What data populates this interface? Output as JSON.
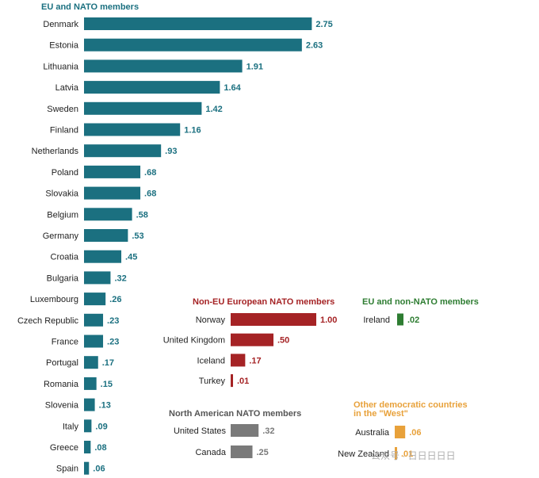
{
  "chart_data": [
    {
      "type": "bar",
      "orientation": "horizontal",
      "title": "EU and NATO members",
      "color": "#1b7080",
      "categories": [
        "Denmark",
        "Estonia",
        "Lithuania",
        "Latvia",
        "Sweden",
        "Finland",
        "Netherlands",
        "Poland",
        "Slovakia",
        "Belgium",
        "Germany",
        "Croatia",
        "Bulgaria",
        "Luxembourg",
        "Czech Republic",
        "France",
        "Portugal",
        "Romania",
        "Slovenia",
        "Italy",
        "Greece",
        "Spain"
      ],
      "values": [
        2.75,
        2.63,
        1.91,
        1.64,
        1.42,
        1.16,
        0.93,
        0.68,
        0.68,
        0.58,
        0.53,
        0.45,
        0.32,
        0.26,
        0.23,
        0.23,
        0.17,
        0.15,
        0.13,
        0.09,
        0.08,
        0.06
      ],
      "value_labels": [
        "2.75",
        "2.63",
        "1.91",
        "1.64",
        "1.42",
        "1.16",
        ".93",
        ".68",
        ".68",
        ".58",
        ".53",
        ".45",
        ".32",
        ".26",
        ".23",
        ".23",
        ".17",
        ".15",
        ".13",
        ".09",
        ".08",
        ".06"
      ]
    },
    {
      "type": "bar",
      "orientation": "horizontal",
      "title": "Non-EU European NATO members",
      "color": "#a52325",
      "categories": [
        "Norway",
        "United Kingdom",
        "Iceland",
        "Turkey"
      ],
      "values": [
        1.0,
        0.5,
        0.17,
        0.01
      ],
      "value_labels": [
        "1.00",
        ".50",
        ".17",
        ".01"
      ]
    },
    {
      "type": "bar",
      "orientation": "horizontal",
      "title": "EU and non-NATO members",
      "color": "#2e7d32",
      "categories": [
        "Ireland"
      ],
      "values": [
        0.02
      ],
      "value_labels": [
        ".02"
      ]
    },
    {
      "type": "bar",
      "orientation": "horizontal",
      "title": "North American NATO members",
      "color": "#7a7a7a",
      "categories": [
        "United States",
        "Canada"
      ],
      "values": [
        0.32,
        0.25
      ],
      "value_labels": [
        ".32",
        ".25"
      ]
    },
    {
      "type": "bar",
      "orientation": "horizontal",
      "title_lines": [
        "Other democratic countries",
        "in the \"West\""
      ],
      "color": "#e8a13a",
      "categories": [
        "Australia",
        "New Zealand"
      ],
      "values": [
        0.06,
        0.01
      ],
      "value_labels": [
        ".06",
        ".01"
      ]
    }
  ],
  "watermark": "公众号 · 日日日日日"
}
